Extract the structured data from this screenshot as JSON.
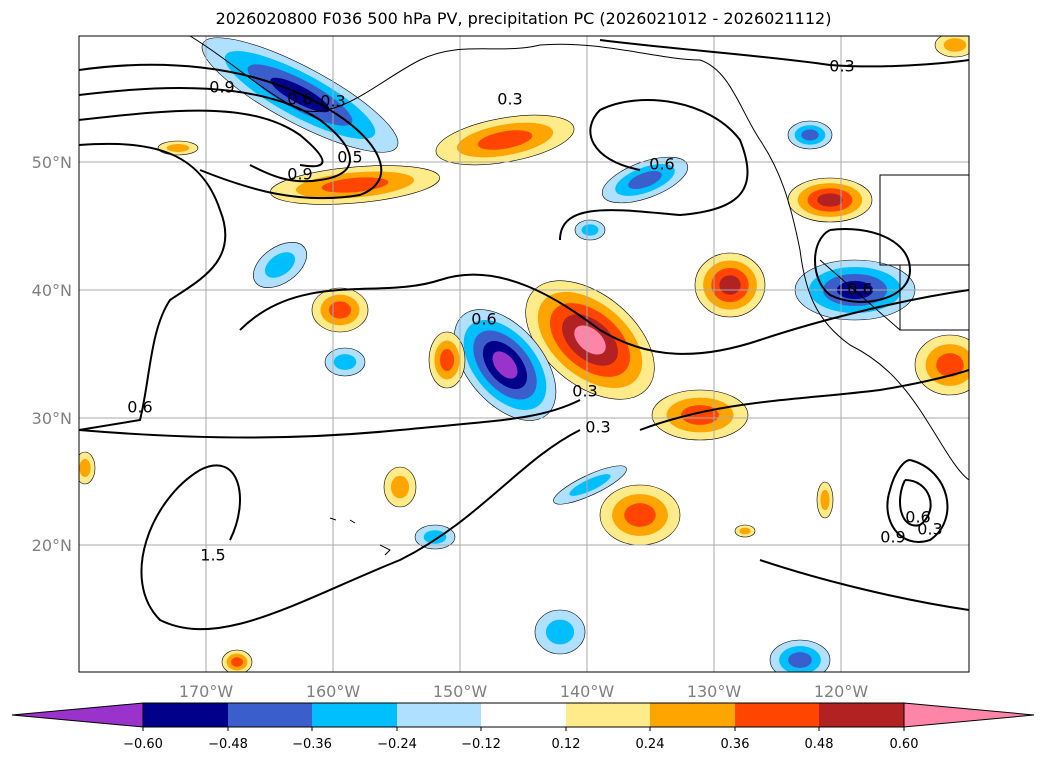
{
  "title": "2026020800 F036 500 hPa PV, precipitation PC (2026021012 - 2026021112)",
  "map": {
    "lat_labels": [
      "50°N",
      "40°N",
      "30°N",
      "20°N"
    ],
    "lon_labels": [
      "170°W",
      "160°W",
      "150°W",
      "140°W",
      "130°W",
      "120°W"
    ],
    "contour_labels": [
      "0.9",
      "0.6",
      "0.3",
      "0.3",
      "0.3",
      "0.6",
      "0.6",
      "0.6",
      "0.9",
      "0.3",
      "0.3",
      "0.6",
      "1.5",
      "0.6",
      "0.9",
      "0.3",
      "0.5"
    ]
  },
  "colorbar": {
    "ticks": [
      "−0.60",
      "−0.48",
      "−0.36",
      "−0.24",
      "−0.12",
      "0.12",
      "0.24",
      "0.36",
      "0.48",
      "0.60"
    ],
    "colors": [
      "#9933cc",
      "#00008b",
      "#3a5fcd",
      "#00bfff",
      "#b0e0ff",
      "#ffffff",
      "#ffeb8a",
      "#ffa500",
      "#ff4500",
      "#b22222",
      "#ff85a8"
    ]
  }
}
